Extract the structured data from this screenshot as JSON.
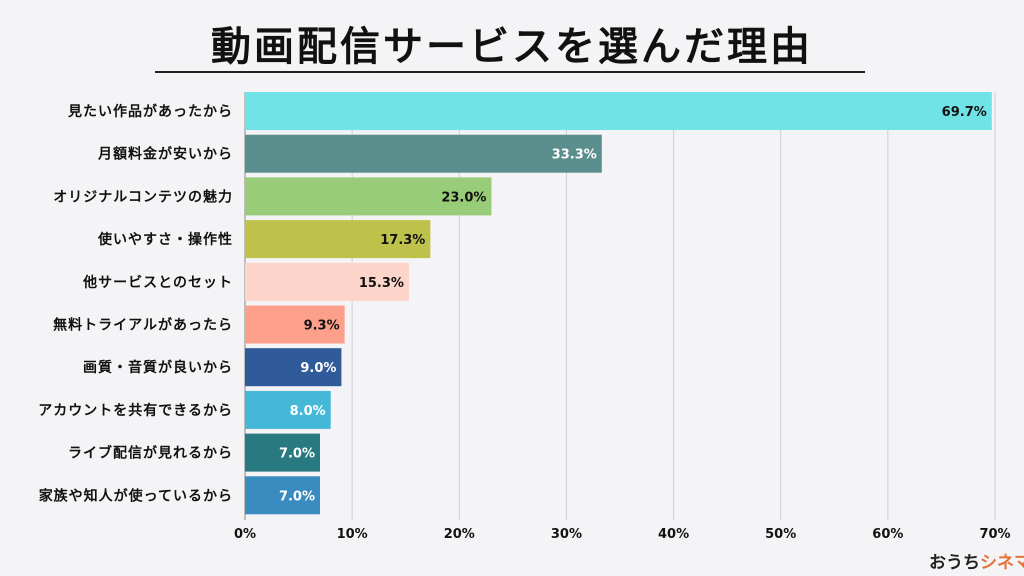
{
  "chart_data": {
    "type": "bar",
    "orientation": "horizontal",
    "title": "動画配信サービスを選んだ理由",
    "categories": [
      "見たい作品があったから",
      "月額料金が安いから",
      "オリジナルコンテツの魅力",
      "使いやすさ・操作性",
      "他サービスとのセット",
      "無料トライアルがあったら",
      "画質・音質が良いから",
      "アカウントを共有できるから",
      "ライブ配信が見れるから",
      "家族や知人が使っているから"
    ],
    "values": [
      69.7,
      33.3,
      23.0,
      17.3,
      15.3,
      9.3,
      9.0,
      8.0,
      7.0,
      7.0
    ],
    "data_labels": [
      "69.7%",
      "33.3%",
      "23.0%",
      "17.3%",
      "15.3%",
      "9.3%",
      "9.0%",
      "8.0%",
      "7.0%",
      "7.0%"
    ],
    "colors": [
      "#6fe3e6",
      "#5b8f8e",
      "#98cc78",
      "#bfc24a",
      "#fcd4c9",
      "#fc9f8b",
      "#2f5b9a",
      "#45b8d8",
      "#287a80",
      "#3a8cc0"
    ],
    "label_colors": [
      "#111111",
      "#ffffff",
      "#111111",
      "#111111",
      "#111111",
      "#111111",
      "#ffffff",
      "#ffffff",
      "#ffffff",
      "#ffffff"
    ],
    "xlim": [
      0,
      70
    ],
    "xticks": [
      "0%",
      "10%",
      "20%",
      "30%",
      "40%",
      "50%",
      "60%",
      "70%"
    ],
    "grid": true
  },
  "logo": {
    "text_a": "おうち",
    "text_b": "シネマ"
  }
}
